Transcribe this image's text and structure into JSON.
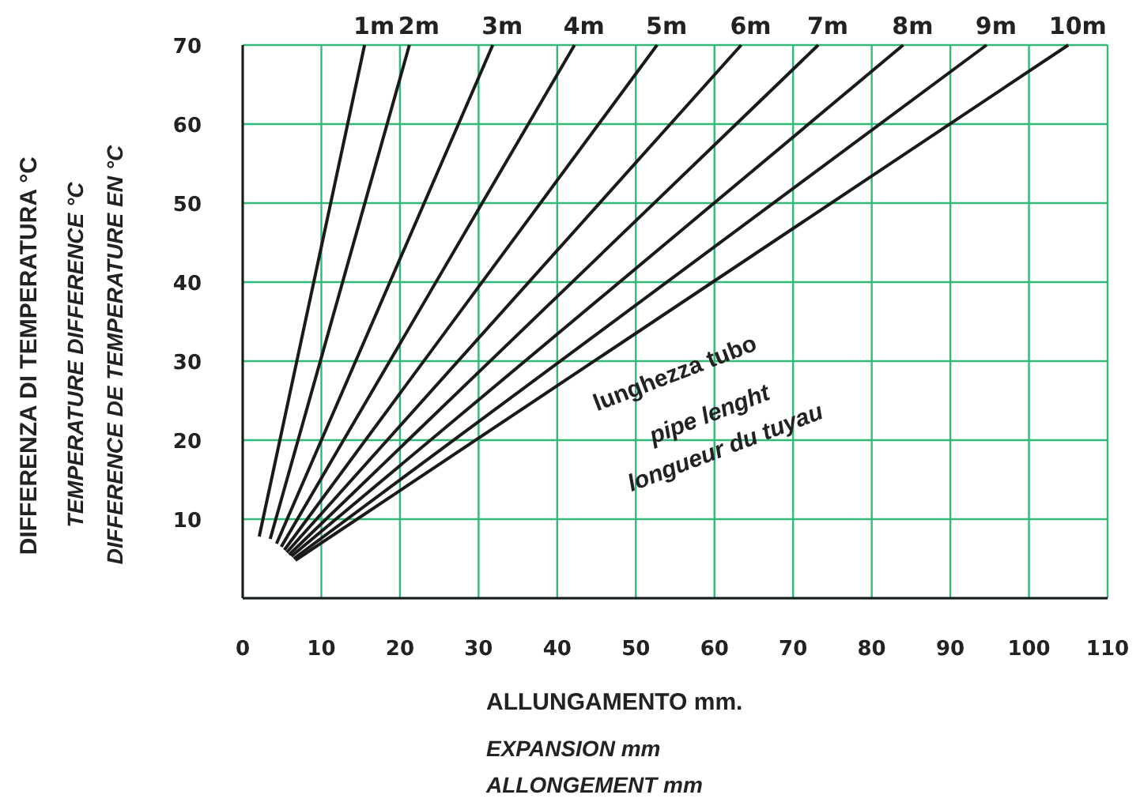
{
  "chart_data": {
    "type": "line",
    "xlabel": "ALLUNGAMENTO mm.\nEXPANSION mm\nALLONGEMENT mm",
    "ylabel": "DIFFERENZA DI TEMPERATURA °C\nTEMPERATURE DIFFERENCE °C\nDIFFERENCE DE TEMPERATURE EN °C",
    "xlim": [
      0,
      110
    ],
    "ylim": [
      0,
      70
    ],
    "xticks": [
      0,
      10,
      20,
      30,
      40,
      50,
      60,
      70,
      80,
      90,
      100,
      110
    ],
    "yticks": [
      {
        "value": 0,
        "label": null
      },
      10,
      20,
      30,
      40,
      50,
      60,
      70
    ],
    "grid": true,
    "marker": "none",
    "line_style": "solid",
    "annotations": [
      "lunghezza tubo",
      "pipe lenght",
      "longueur du tuyau"
    ],
    "series": [
      {
        "name": "1m",
        "color": "#1a1a1a",
        "x": [
          2.1,
          15.5
        ],
        "values": [
          7.8,
          70
        ]
      },
      {
        "name": "2m",
        "color": "#1a1a1a",
        "x": [
          3.5,
          21.2
        ],
        "values": [
          7.5,
          70
        ]
      },
      {
        "name": "3m",
        "color": "#1a1a1a",
        "x": [
          4.3,
          31.8
        ],
        "values": [
          6.9,
          70
        ]
      },
      {
        "name": "4m",
        "color": "#1a1a1a",
        "x": [
          4.9,
          42.2
        ],
        "values": [
          6.5,
          70
        ]
      },
      {
        "name": "5m",
        "color": "#1a1a1a",
        "x": [
          5.3,
          52.7
        ],
        "values": [
          6.1,
          70
        ]
      },
      {
        "name": "6m",
        "color": "#1a1a1a",
        "x": [
          5.6,
          63.4
        ],
        "values": [
          5.8,
          70
        ]
      },
      {
        "name": "7m",
        "color": "#1a1a1a",
        "x": [
          5.9,
          73.2
        ],
        "values": [
          5.5,
          70
        ]
      },
      {
        "name": "8m",
        "color": "#1a1a1a",
        "x": [
          6.2,
          84.0
        ],
        "values": [
          5.3,
          70
        ]
      },
      {
        "name": "9m",
        "color": "#1a1a1a",
        "x": [
          6.5,
          94.6
        ],
        "values": [
          5.0,
          70
        ]
      },
      {
        "name": "10m",
        "color": "#1a1a1a",
        "x": [
          6.7,
          105.0
        ],
        "values": [
          4.8,
          70
        ]
      }
    ]
  }
}
